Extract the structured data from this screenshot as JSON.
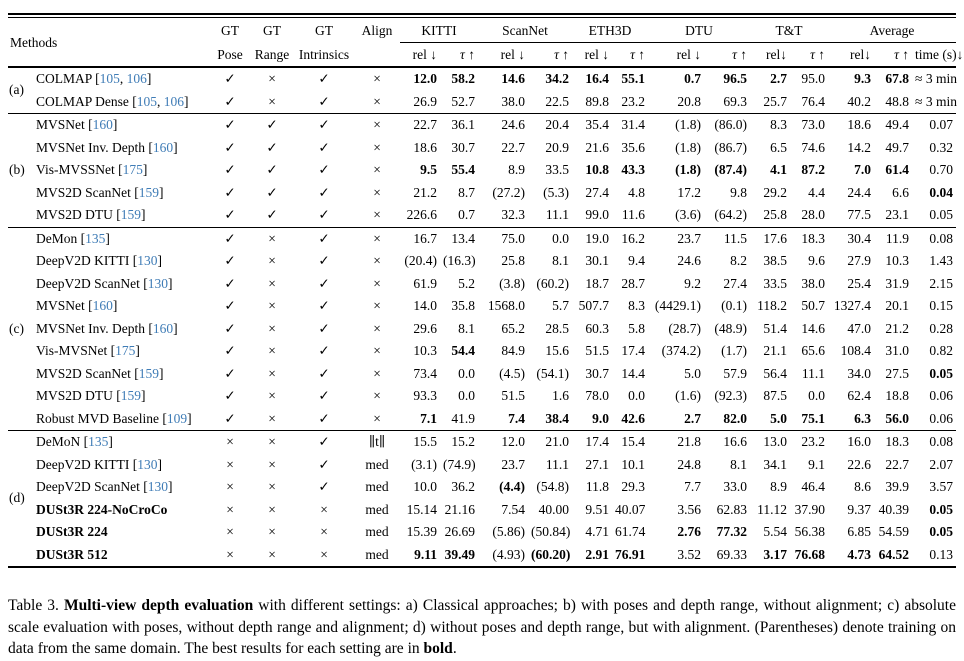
{
  "colors": {
    "cite": "#3f7cb6",
    "text": "#000000",
    "background": "#ffffff"
  },
  "header": {
    "methods": "Methods",
    "gt_label": "GT",
    "gt_subs": [
      "Pose",
      "Range",
      "Intrinsics"
    ],
    "align": "Align",
    "datasets": [
      {
        "name": "KITTI",
        "rel": "rel ↓",
        "tau": "τ ↑"
      },
      {
        "name": "ScanNet",
        "rel": "rel ↓",
        "tau": "τ ↑"
      },
      {
        "name": "ETH3D",
        "rel": "rel ↓",
        "tau": "τ ↑"
      },
      {
        "name": "DTU",
        "rel": "rel ↓",
        "tau": "τ ↑"
      },
      {
        "name": "T&T",
        "rel": "rel↓",
        "tau": "τ ↑"
      }
    ],
    "average": {
      "name": "Average",
      "rel": "rel↓",
      "tau": "τ ↑",
      "time": "time (s)↓"
    }
  },
  "groups": [
    {
      "label": "(a)",
      "rows": [
        {
          "method": "COLMAP",
          "cites": [
            "105",
            "106"
          ],
          "bold_method": false,
          "settings": [
            "✓",
            "×",
            "✓",
            "×"
          ],
          "values": [
            "12.0",
            "58.2",
            "14.6",
            "34.2",
            "16.4",
            "55.1",
            "0.7",
            "96.5",
            "2.7",
            "95.0",
            "9.3",
            "67.8",
            "≈ 3 min"
          ],
          "bold_vals": [
            0,
            1,
            2,
            3,
            4,
            5,
            6,
            7,
            8,
            10,
            11
          ]
        },
        {
          "method": "COLMAP Dense",
          "cites": [
            "105",
            "106"
          ],
          "bold_method": false,
          "settings": [
            "✓",
            "×",
            "✓",
            "×"
          ],
          "values": [
            "26.9",
            "52.7",
            "38.0",
            "22.5",
            "89.8",
            "23.2",
            "20.8",
            "69.3",
            "25.7",
            "76.4",
            "40.2",
            "48.8",
            "≈ 3 min"
          ],
          "bold_vals": []
        }
      ]
    },
    {
      "label": "(b)",
      "rows": [
        {
          "method": "MVSNet",
          "cites": [
            "160"
          ],
          "bold_method": false,
          "settings": [
            "✓",
            "✓",
            "✓",
            "×"
          ],
          "values": [
            "22.7",
            "36.1",
            "24.6",
            "20.4",
            "35.4",
            "31.4",
            "(1.8)",
            "(86.0)",
            "8.3",
            "73.0",
            "18.6",
            "49.4",
            "0.07"
          ],
          "bold_vals": []
        },
        {
          "method": "MVSNet Inv. Depth",
          "cites": [
            "160"
          ],
          "bold_method": false,
          "settings": [
            "✓",
            "✓",
            "✓",
            "×"
          ],
          "values": [
            "18.6",
            "30.7",
            "22.7",
            "20.9",
            "21.6",
            "35.6",
            "(1.8)",
            "(86.7)",
            "6.5",
            "74.6",
            "14.2",
            "49.7",
            "0.32"
          ],
          "bold_vals": []
        },
        {
          "method": "Vis-MVSSNet",
          "cites": [
            "175"
          ],
          "bold_method": false,
          "settings": [
            "✓",
            "✓",
            "✓",
            "×"
          ],
          "values": [
            "9.5",
            "55.4",
            "8.9",
            "33.5",
            "10.8",
            "43.3",
            "(1.8)",
            "(87.4)",
            "4.1",
            "87.2",
            "7.0",
            "61.4",
            "0.70"
          ],
          "bold_vals": [
            0,
            1,
            4,
            5,
            6,
            7,
            8,
            9,
            10,
            11
          ]
        },
        {
          "method": "MVS2D ScanNet",
          "cites": [
            "159"
          ],
          "bold_method": false,
          "settings": [
            "✓",
            "✓",
            "✓",
            "×"
          ],
          "values": [
            "21.2",
            "8.7",
            "(27.2)",
            "(5.3)",
            "27.4",
            "4.8",
            "17.2",
            "9.8",
            "29.2",
            "4.4",
            "24.4",
            "6.6",
            "0.04"
          ],
          "bold_vals": [
            12
          ]
        },
        {
          "method": "MVS2D DTU",
          "cites": [
            "159"
          ],
          "bold_method": false,
          "settings": [
            "✓",
            "✓",
            "✓",
            "×"
          ],
          "values": [
            "226.6",
            "0.7",
            "32.3",
            "11.1",
            "99.0",
            "11.6",
            "(3.6)",
            "(64.2)",
            "25.8",
            "28.0",
            "77.5",
            "23.1",
            "0.05"
          ],
          "bold_vals": []
        }
      ]
    },
    {
      "label": "(c)",
      "rows": [
        {
          "method": "DeMon",
          "cites": [
            "135"
          ],
          "bold_method": false,
          "settings": [
            "✓",
            "×",
            "✓",
            "×"
          ],
          "values": [
            "16.7",
            "13.4",
            "75.0",
            "0.0",
            "19.0",
            "16.2",
            "23.7",
            "11.5",
            "17.6",
            "18.3",
            "30.4",
            "11.9",
            "0.08"
          ],
          "bold_vals": []
        },
        {
          "method": "DeepV2D KITTI",
          "cites": [
            "130"
          ],
          "bold_method": false,
          "settings": [
            "✓",
            "×",
            "✓",
            "×"
          ],
          "values": [
            "(20.4)",
            "(16.3)",
            "25.8",
            "8.1",
            "30.1",
            "9.4",
            "24.6",
            "8.2",
            "38.5",
            "9.6",
            "27.9",
            "10.3",
            "1.43"
          ],
          "bold_vals": []
        },
        {
          "method": "DeepV2D ScanNet",
          "cites": [
            "130"
          ],
          "bold_method": false,
          "settings": [
            "✓",
            "×",
            "✓",
            "×"
          ],
          "values": [
            "61.9",
            "5.2",
            "(3.8)",
            "(60.2)",
            "18.7",
            "28.7",
            "9.2",
            "27.4",
            "33.5",
            "38.0",
            "25.4",
            "31.9",
            "2.15"
          ],
          "bold_vals": []
        },
        {
          "method": "MVSNet",
          "cites": [
            "160"
          ],
          "bold_method": false,
          "settings": [
            "✓",
            "×",
            "✓",
            "×"
          ],
          "values": [
            "14.0",
            "35.8",
            "1568.0",
            "5.7",
            "507.7",
            "8.3",
            "(4429.1)",
            "(0.1)",
            "118.2",
            "50.7",
            "1327.4",
            "20.1",
            "0.15"
          ],
          "bold_vals": []
        },
        {
          "method": "MVSNet Inv. Depth",
          "cites": [
            "160"
          ],
          "bold_method": false,
          "settings": [
            "✓",
            "×",
            "✓",
            "×"
          ],
          "values": [
            "29.6",
            "8.1",
            "65.2",
            "28.5",
            "60.3",
            "5.8",
            "(28.7)",
            "(48.9)",
            "51.4",
            "14.6",
            "47.0",
            "21.2",
            "0.28"
          ],
          "bold_vals": []
        },
        {
          "method": "Vis-MVSNet",
          "cites": [
            "175"
          ],
          "bold_method": false,
          "settings": [
            "✓",
            "×",
            "✓",
            "×"
          ],
          "values": [
            "10.3",
            "54.4",
            "84.9",
            "15.6",
            "51.5",
            "17.4",
            "(374.2)",
            "(1.7)",
            "21.1",
            "65.6",
            "108.4",
            "31.0",
            "0.82"
          ],
          "bold_vals": [
            1
          ]
        },
        {
          "method": "MVS2D ScanNet",
          "cites": [
            "159"
          ],
          "bold_method": false,
          "settings": [
            "✓",
            "×",
            "✓",
            "×"
          ],
          "values": [
            "73.4",
            "0.0",
            "(4.5)",
            "(54.1)",
            "30.7",
            "14.4",
            "5.0",
            "57.9",
            "56.4",
            "11.1",
            "34.0",
            "27.5",
            "0.05"
          ],
          "bold_vals": [
            12
          ]
        },
        {
          "method": "MVS2D DTU",
          "cites": [
            "159"
          ],
          "bold_method": false,
          "settings": [
            "✓",
            "×",
            "✓",
            "×"
          ],
          "values": [
            "93.3",
            "0.0",
            "51.5",
            "1.6",
            "78.0",
            "0.0",
            "(1.6)",
            "(92.3)",
            "87.5",
            "0.0",
            "62.4",
            "18.8",
            "0.06"
          ],
          "bold_vals": []
        },
        {
          "method": "Robust MVD Baseline",
          "cites": [
            "109"
          ],
          "bold_method": false,
          "settings": [
            "✓",
            "×",
            "✓",
            "×"
          ],
          "values": [
            "7.1",
            "41.9",
            "7.4",
            "38.4",
            "9.0",
            "42.6",
            "2.7",
            "82.0",
            "5.0",
            "75.1",
            "6.3",
            "56.0",
            "0.06"
          ],
          "bold_vals": [
            0,
            2,
            3,
            4,
            5,
            6,
            7,
            8,
            9,
            10,
            11
          ]
        }
      ]
    },
    {
      "label": "(d)",
      "rows": [
        {
          "method": "DeMoN",
          "cites": [
            "135"
          ],
          "bold_method": false,
          "settings": [
            "×",
            "×",
            "✓",
            "∥t∥"
          ],
          "values": [
            "15.5",
            "15.2",
            "12.0",
            "21.0",
            "17.4",
            "15.4",
            "21.8",
            "16.6",
            "13.0",
            "23.2",
            "16.0",
            "18.3",
            "0.08"
          ],
          "bold_vals": []
        },
        {
          "method": "DeepV2D KITTI",
          "cites": [
            "130"
          ],
          "bold_method": false,
          "settings": [
            "×",
            "×",
            "✓",
            "med"
          ],
          "values": [
            "(3.1)",
            "(74.9)",
            "23.7",
            "11.1",
            "27.1",
            "10.1",
            "24.8",
            "8.1",
            "34.1",
            "9.1",
            "22.6",
            "22.7",
            "2.07"
          ],
          "bold_vals": []
        },
        {
          "method": "DeepV2D ScanNet",
          "cites": [
            "130"
          ],
          "bold_method": false,
          "settings": [
            "×",
            "×",
            "✓",
            "med"
          ],
          "values": [
            "10.0",
            "36.2",
            "(4.4)",
            "(54.8)",
            "11.8",
            "29.3",
            "7.7",
            "33.0",
            "8.9",
            "46.4",
            "8.6",
            "39.9",
            "3.57"
          ],
          "bold_vals": [
            2
          ]
        },
        {
          "method": "DUSt3R 224-NoCroCo",
          "cites": [],
          "bold_method": true,
          "settings": [
            "×",
            "×",
            "×",
            "med"
          ],
          "values": [
            "15.14",
            "21.16",
            "7.54",
            "40.00",
            "9.51",
            "40.07",
            "3.56",
            "62.83",
            "11.12",
            "37.90",
            "9.37",
            "40.39",
            "0.05"
          ],
          "bold_vals": [
            12
          ]
        },
        {
          "method": "DUSt3R 224",
          "cites": [],
          "bold_method": true,
          "settings": [
            "×",
            "×",
            "×",
            "med"
          ],
          "values": [
            "15.39",
            "26.69",
            "(5.86)",
            "(50.84)",
            "4.71",
            "61.74",
            "2.76",
            "77.32",
            "5.54",
            "56.38",
            "6.85",
            "54.59",
            "0.05"
          ],
          "bold_vals": [
            6,
            7,
            12
          ]
        },
        {
          "method": "DUSt3R 512",
          "cites": [],
          "bold_method": true,
          "settings": [
            "×",
            "×",
            "×",
            "med"
          ],
          "values": [
            "9.11",
            "39.49",
            "(4.93)",
            "(60.20)",
            "2.91",
            "76.91",
            "3.52",
            "69.33",
            "3.17",
            "76.68",
            "4.73",
            "64.52",
            "0.13"
          ],
          "bold_vals": [
            0,
            1,
            3,
            4,
            5,
            8,
            9,
            10,
            11
          ]
        }
      ]
    }
  ],
  "caption": {
    "parts": [
      {
        "t": "Table 3. "
      },
      {
        "b": "Multi-view depth evaluation"
      },
      {
        "t": " with different settings: a) Classical approaches; b) with poses and depth range, without alignment; c) absolute scale evaluation with poses, without depth range and alignment; d) without poses and depth range, but with alignment. (Parentheses) denote training on data from the same domain. The best results for each setting are in "
      },
      {
        "b": "bold"
      },
      {
        "t": "."
      }
    ]
  }
}
